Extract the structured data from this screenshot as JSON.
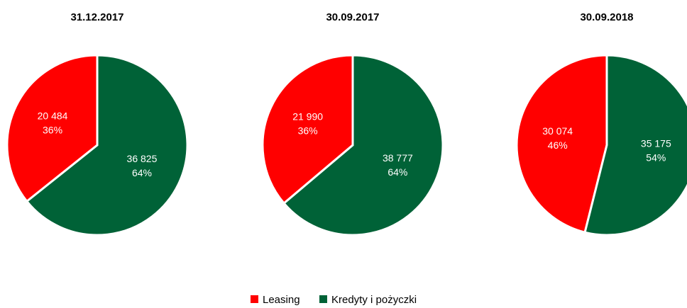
{
  "chart_data": [
    {
      "type": "pie",
      "title": "31.12.2017",
      "categories": [
        "Leasing",
        "Kredyty i pożyczki"
      ],
      "values": [
        20484,
        36825
      ],
      "value_labels": [
        "20 484",
        "36 825"
      ],
      "percent_labels": [
        "36%",
        "64%"
      ],
      "colors": [
        "#ff0000",
        "#006237"
      ]
    },
    {
      "type": "pie",
      "title": "30.09.2017",
      "categories": [
        "Leasing",
        "Kredyty i pożyczki"
      ],
      "values": [
        21990,
        38777
      ],
      "value_labels": [
        "21 990",
        "38 777"
      ],
      "percent_labels": [
        "36%",
        "64%"
      ],
      "colors": [
        "#ff0000",
        "#006237"
      ]
    },
    {
      "type": "pie",
      "title": "30.09.2018",
      "categories": [
        "Leasing",
        "Kredyty i pożyczki"
      ],
      "values": [
        30074,
        35175
      ],
      "value_labels": [
        "30 074",
        "35 175"
      ],
      "percent_labels": [
        "46%",
        "54%"
      ],
      "colors": [
        "#ff0000",
        "#006237"
      ]
    }
  ]
}
